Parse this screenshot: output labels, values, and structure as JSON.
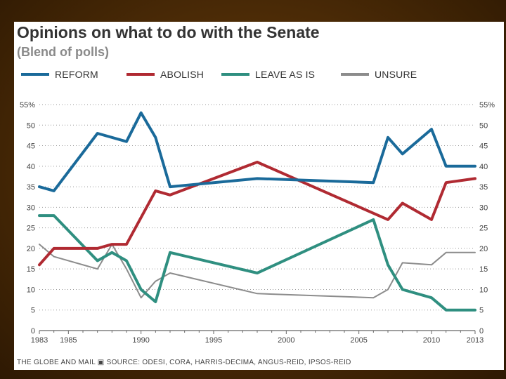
{
  "chart_data": {
    "type": "line",
    "title": "Opinions on what to do with the Senate",
    "subtitle": "(Blend of polls)",
    "ylim": [
      0,
      55
    ],
    "yticks": [
      0,
      5,
      10,
      15,
      20,
      25,
      30,
      35,
      40,
      45,
      50,
      55
    ],
    "ytick_labels": [
      "0",
      "5",
      "10",
      "15",
      "20",
      "25",
      "30",
      "35",
      "40",
      "45",
      "50",
      "55%"
    ],
    "xlim": [
      1983,
      2013
    ],
    "xticks": [
      1983,
      1985,
      1990,
      1995,
      2000,
      2005,
      2010,
      2013
    ],
    "xtick_labels": [
      "1983",
      "1985",
      "1990",
      "1995",
      "2000",
      "2005",
      "2010",
      "2013"
    ],
    "grid": "horizontal dotted",
    "series": [
      {
        "name": "REFORM",
        "color": "#1a6a9a",
        "x": [
          1983,
          1984,
          1987,
          1989,
          1990,
          1991,
          1992,
          1998,
          2006,
          2007,
          2008,
          2010,
          2011,
          2013
        ],
        "values": [
          35,
          34,
          48,
          46,
          53,
          47,
          35,
          37,
          36,
          47,
          43,
          49,
          40,
          40
        ]
      },
      {
        "name": "ABOLISH",
        "color": "#b02a32",
        "x": [
          1983,
          1984,
          1987,
          1988,
          1989,
          1991,
          1992,
          1998,
          2007,
          2008,
          2010,
          2011,
          2013
        ],
        "values": [
          16,
          20,
          20,
          21,
          21,
          34,
          33,
          41,
          27,
          31,
          27,
          36,
          37
        ]
      },
      {
        "name": "LEAVE AS IS",
        "color": "#2f8f80",
        "x": [
          1983,
          1984,
          1987,
          1988,
          1989,
          1990,
          1991,
          1992,
          1998,
          2006,
          2007,
          2008,
          2010,
          2011,
          2013
        ],
        "values": [
          28,
          28,
          17,
          19,
          17,
          10,
          7,
          19,
          14,
          27,
          16,
          10,
          8,
          5,
          5
        ]
      },
      {
        "name": "UNSURE",
        "color": "#8c8c8c",
        "x": [
          1983,
          1984,
          1987,
          1988,
          1989,
          1990,
          1991,
          1992,
          1998,
          2006,
          2007,
          2008,
          2010,
          2011,
          2013
        ],
        "values": [
          21,
          18,
          15,
          21,
          15,
          8,
          12,
          14,
          9,
          8,
          10,
          16.5,
          16,
          19,
          19
        ]
      }
    ],
    "footer": "THE GLOBE AND MAIL  ▣  SOURCE: ODESI, CORA, HARRIS-DECIMA, ANGUS-REID, IPSOS-REID"
  }
}
